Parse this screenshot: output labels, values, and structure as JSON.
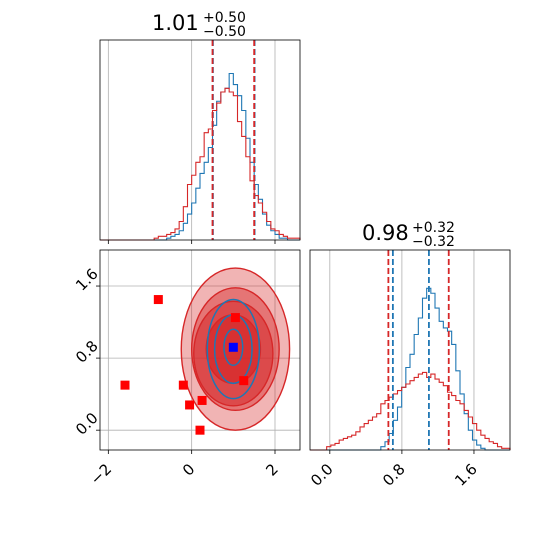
{
  "chart_data": [
    {
      "type": "histogram",
      "panel": "x marginal",
      "title": {
        "value": "1.01",
        "plus": "+0.50",
        "minus": "−0.50"
      },
      "xlim": [
        -2.2,
        2.6
      ],
      "grid": true,
      "series": [
        {
          "color": "#1f77b4",
          "quantiles": [
            0.51,
            1.51
          ],
          "hist": [
            0,
            0,
            0,
            0,
            0,
            0,
            0,
            0,
            0,
            0,
            0,
            0,
            0,
            0,
            0,
            0,
            0.01,
            0.02,
            0.03,
            0.05,
            0.09,
            0.14,
            0.2,
            0.28,
            0.36,
            0.42,
            0.5,
            0.62,
            0.75,
            0.8,
            0.82,
            0.9,
            0.84,
            0.78,
            0.7,
            0.55,
            0.42,
            0.3,
            0.22,
            0.14,
            0.08,
            0.05,
            0.03,
            0.01,
            0.01,
            0,
            0,
            0
          ]
        },
        {
          "color": "#d62728",
          "quantiles": [
            0.5,
            1.5
          ],
          "hist": [
            0,
            0,
            0,
            0,
            0,
            0,
            0,
            0,
            0,
            0,
            0,
            0,
            0,
            0.01,
            0.02,
            0.02,
            0.03,
            0.04,
            0.06,
            0.1,
            0.18,
            0.3,
            0.35,
            0.42,
            0.45,
            0.58,
            0.6,
            0.7,
            0.74,
            0.8,
            0.82,
            0.8,
            0.78,
            0.64,
            0.56,
            0.45,
            0.32,
            0.24,
            0.2,
            0.15,
            0.1,
            0.06,
            0.05,
            0.03,
            0.02,
            0.01,
            0.01,
            0.01
          ]
        }
      ]
    },
    {
      "type": "scatter",
      "panel": "joint x-y",
      "xlim": [
        -2.2,
        2.6
      ],
      "ylim": [
        -0.22,
        2.0
      ],
      "xticks": [
        "−2",
        "0",
        "2"
      ],
      "yticks": [
        "0.0",
        "0.8",
        "1.6"
      ],
      "grid": true,
      "points": {
        "red_squares": [
          {
            "x": -0.8,
            "y": 1.45
          },
          {
            "x": -1.6,
            "y": 0.5
          },
          {
            "x": -0.2,
            "y": 0.5
          },
          {
            "x": -0.05,
            "y": 0.28
          },
          {
            "x": 0.25,
            "y": 0.33
          },
          {
            "x": 0.2,
            "y": 0.0
          },
          {
            "x": 1.05,
            "y": 1.25
          },
          {
            "x": 1.25,
            "y": 0.55
          }
        ],
        "blue_square": {
          "x": 1.0,
          "y": 0.92
        }
      },
      "contours": {
        "red": [
          {
            "cx": 1.05,
            "cy": 0.9,
            "rx": 1.3,
            "ry": 0.9,
            "opacity": 0.35
          },
          {
            "cx": 1.05,
            "cy": 0.9,
            "rx": 1.05,
            "ry": 0.68,
            "opacity": 0.45
          },
          {
            "cx": 1.0,
            "cy": 0.85,
            "rx": 0.95,
            "ry": 0.58,
            "opacity": 0.55
          },
          {
            "cx": 1.0,
            "cy": 0.9,
            "rx": 0.65,
            "ry": 0.38,
            "opacity": 0.7
          }
        ],
        "blue": [
          {
            "cx": 1.0,
            "cy": 0.9,
            "rx": 1.25,
            "ry": 0.55
          },
          {
            "cx": 1.0,
            "cy": 0.9,
            "rx": 0.9,
            "ry": 0.38
          },
          {
            "cx": 1.0,
            "cy": 0.92,
            "rx": 0.45,
            "ry": 0.2
          }
        ]
      }
    },
    {
      "type": "histogram",
      "panel": "y marginal",
      "title": {
        "value": "0.98",
        "plus": "+0.32",
        "minus": "−0.32"
      },
      "xlim": [
        -0.22,
        2.0
      ],
      "xticks": [
        "0.0",
        "0.8",
        "1.6"
      ],
      "grid": true,
      "series": [
        {
          "color": "#1f77b4",
          "quantiles": [
            0.7,
            1.1
          ],
          "hist": [
            0,
            0,
            0,
            0,
            0,
            0,
            0,
            0,
            0,
            0,
            0,
            0,
            0,
            0,
            0,
            0,
            0,
            0.02,
            0.05,
            0.1,
            0.18,
            0.26,
            0.38,
            0.5,
            0.58,
            0.7,
            0.8,
            0.92,
            0.98,
            0.95,
            0.86,
            0.78,
            0.74,
            0.72,
            0.64,
            0.48,
            0.34,
            0.22,
            0.12,
            0.06,
            0.03,
            0.01,
            0,
            0,
            0,
            0,
            0,
            0
          ]
        },
        {
          "color": "#d62728",
          "quantiles": [
            0.65,
            1.32
          ],
          "hist": [
            0,
            0,
            0,
            0,
            0.02,
            0.03,
            0.04,
            0.06,
            0.07,
            0.08,
            0.09,
            0.11,
            0.14,
            0.16,
            0.18,
            0.2,
            0.22,
            0.28,
            0.3,
            0.32,
            0.34,
            0.36,
            0.38,
            0.4,
            0.42,
            0.44,
            0.46,
            0.47,
            0.44,
            0.46,
            0.43,
            0.41,
            0.39,
            0.35,
            0.33,
            0.3,
            0.28,
            0.24,
            0.2,
            0.16,
            0.12,
            0.09,
            0.07,
            0.05,
            0.04,
            0.02,
            0.01,
            0.01
          ]
        }
      ]
    }
  ]
}
